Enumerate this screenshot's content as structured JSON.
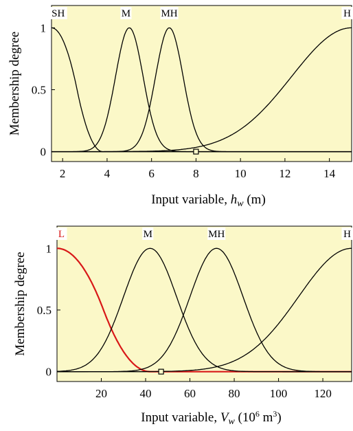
{
  "colors": {
    "plot_bg": "#fbf8c8",
    "curve": "#000000",
    "highlight": "#d81818"
  },
  "chart_data": [
    {
      "type": "line",
      "ylabel": "Membership degree",
      "xlabel_parts": [
        "Input variable, ",
        "h",
        "w",
        " (m)"
      ],
      "xlim": [
        1.5,
        15
      ],
      "ylim": [
        -0.08,
        1.18
      ],
      "xticks": [
        2,
        4,
        6,
        8,
        10,
        12,
        14
      ],
      "yticks": [
        {
          "v": 0,
          "label": "0"
        },
        {
          "v": 0.5,
          "label": "0.5"
        },
        {
          "v": 1,
          "label": "1"
        }
      ],
      "series": [
        {
          "name": "SH",
          "shape": "zmf",
          "params": [
            1.5,
            3.8
          ],
          "label_x": 1.8,
          "color": "#000000"
        },
        {
          "name": "M",
          "shape": "gauss",
          "params": [
            5.0,
            0.62
          ],
          "label_x": 4.85,
          "color": "#000000"
        },
        {
          "name": "MH",
          "shape": "gauss",
          "params": [
            6.8,
            0.62
          ],
          "label_x": 6.8,
          "color": "#000000"
        },
        {
          "name": "H",
          "shape": "gauss",
          "params": [
            15.0,
            2.7
          ],
          "label_x": 14.8,
          "color": "#000000"
        }
      ],
      "marker_x": 8
    },
    {
      "type": "line",
      "ylabel": "Membership degree",
      "xlabel_parts": [
        "Input variable, ",
        "V",
        "w",
        " (10",
        "6",
        " m",
        "3",
        ")"
      ],
      "xlim": [
        0,
        133
      ],
      "ylim": [
        -0.08,
        1.18
      ],
      "xticks": [
        20,
        40,
        60,
        80,
        100,
        120
      ],
      "yticks": [
        {
          "v": 0,
          "label": "0"
        },
        {
          "v": 0.5,
          "label": "0.5"
        },
        {
          "v": 1,
          "label": "1"
        }
      ],
      "series": [
        {
          "name": "L",
          "shape": "zmf",
          "params": [
            0,
            42
          ],
          "label_x": 2,
          "color": "#d81818"
        },
        {
          "name": "M",
          "shape": "gauss",
          "params": [
            42,
            12
          ],
          "label_x": 41,
          "color": "#000000"
        },
        {
          "name": "MH",
          "shape": "gauss",
          "params": [
            72,
            12
          ],
          "label_x": 72,
          "color": "#000000"
        },
        {
          "name": "H",
          "shape": "gauss",
          "params": [
            133,
            24
          ],
          "label_x": 131,
          "color": "#000000"
        }
      ],
      "marker_x": 47
    }
  ]
}
